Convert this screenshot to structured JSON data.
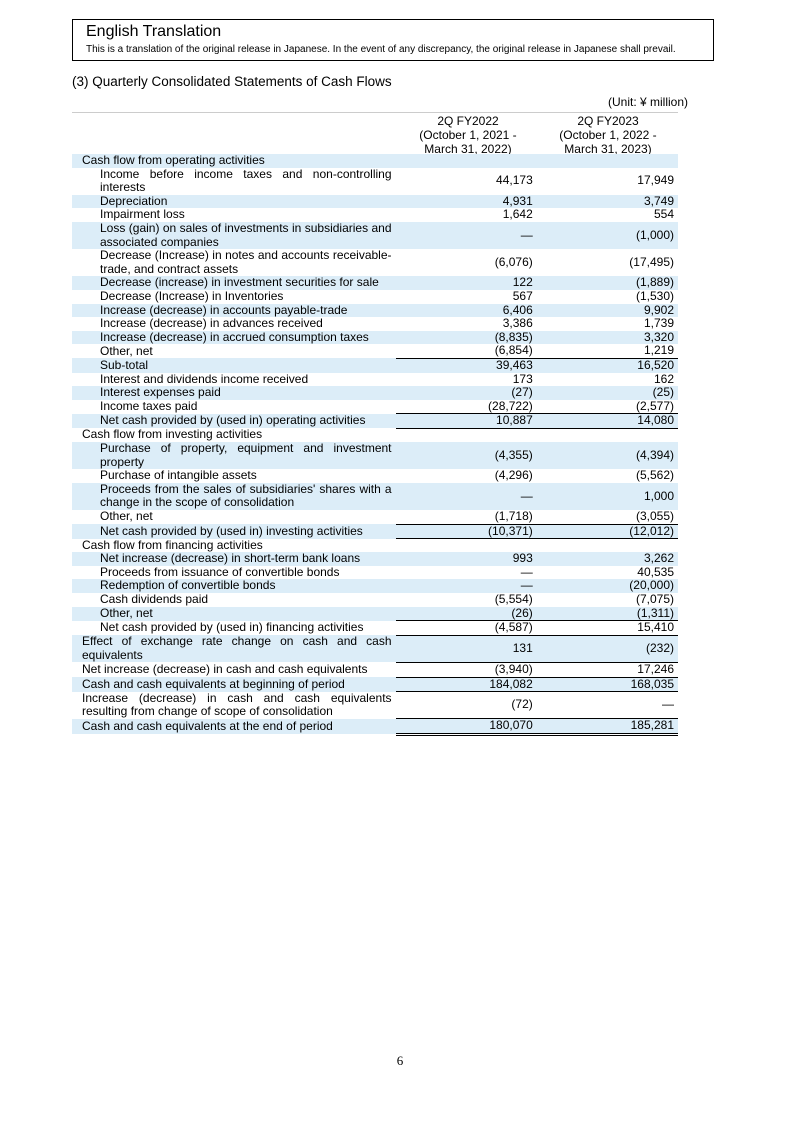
{
  "header": {
    "title": "English Translation",
    "note": "This is a translation of the original release in Japanese. In the event of any discrepancy, the original release in Japanese shall prevail."
  },
  "section_title": "(3) Quarterly Consolidated Statements of Cash Flows",
  "unit": "(Unit: ¥ million)",
  "table": {
    "columns": [
      [
        "2Q FY2022",
        "(October 1, 2021 -",
        "March 31, 2022)"
      ],
      [
        "2Q FY2023",
        "(October 1, 2022 -",
        "March 31, 2023)"
      ]
    ],
    "rows": [
      [
        "Cash flow from operating activities"
      ],
      [
        "Income before income taxes and non-controlling interests",
        "44,173",
        "17,949"
      ],
      [
        "Depreciation",
        "4,931",
        "3,749"
      ],
      [
        "Impairment loss",
        "1,642",
        "554"
      ],
      [
        "Loss (gain) on sales of investments in subsidiaries and associated companies",
        "―",
        "(1,000)"
      ],
      [
        "Decrease (Increase) in notes and accounts receivable-trade, and contract assets",
        "(6,076)",
        "(17,495)"
      ],
      [
        "Decrease (increase) in investment securities for sale",
        "122",
        "(1,889)"
      ],
      [
        "Decrease (Increase) in Inventories",
        "567",
        "(1,530)"
      ],
      [
        "Increase (decrease) in accounts payable-trade",
        "6,406",
        "9,902"
      ],
      [
        "Increase (decrease) in advances received",
        "3,386",
        "1,739"
      ],
      [
        "Increase (decrease) in accrued consumption taxes",
        "(8,835)",
        "3,320"
      ],
      [
        "Other, net",
        "(6,854)",
        "1,219"
      ],
      [
        "Sub-total",
        "39,463",
        "16,520"
      ],
      [
        "Interest and dividends income received",
        "173",
        "162"
      ],
      [
        "Interest expenses paid",
        "(27)",
        "(25)"
      ],
      [
        "Income taxes paid",
        "(28,722)",
        "(2,577)"
      ],
      [
        "Net cash provided by (used in) operating activities",
        "10,887",
        "14,080"
      ],
      [
        "Cash flow from investing activities"
      ],
      [
        "Purchase of property, equipment and investment property",
        "(4,355)",
        "(4,394)"
      ],
      [
        "Purchase of intangible assets",
        "(4,296)",
        "(5,562)"
      ],
      [
        "Proceeds from the sales of subsidiaries' shares with a change in the scope of consolidation",
        "―",
        "1,000"
      ],
      [
        "Other, net",
        "(1,718)",
        "(3,055)"
      ],
      [
        "Net cash provided by (used in) investing activities",
        "(10,371)",
        "(12,012)"
      ],
      [
        "Cash flow from financing activities"
      ],
      [
        "Net increase (decrease) in short-term bank loans",
        "993",
        "3,262"
      ],
      [
        "Proceeds from issuance of convertible bonds",
        "―",
        "40,535"
      ],
      [
        "Redemption of convertible bonds",
        "―",
        "(20,000)"
      ],
      [
        "Cash dividends paid",
        "(5,554)",
        "(7,075)"
      ],
      [
        "Other, net",
        "(26)",
        "(1,311)"
      ],
      [
        "Net cash provided by (used in) financing activities",
        "(4,587)",
        "15,410"
      ],
      [
        "Effect of exchange rate change on cash and cash equivalents",
        "131",
        "(232)"
      ],
      [
        "Net increase (decrease) in cash and cash equivalents",
        "(3,940)",
        "17,246"
      ],
      [
        "Cash and cash equivalents at beginning of period",
        "184,082",
        "168,035"
      ],
      [
        "Increase (decrease) in cash and cash equivalents resulting from change of scope of consolidation",
        "(72)",
        "―"
      ],
      [
        "Cash and cash equivalents at the end of period",
        "180,070",
        "185,281"
      ]
    ]
  },
  "page_number": "6"
}
